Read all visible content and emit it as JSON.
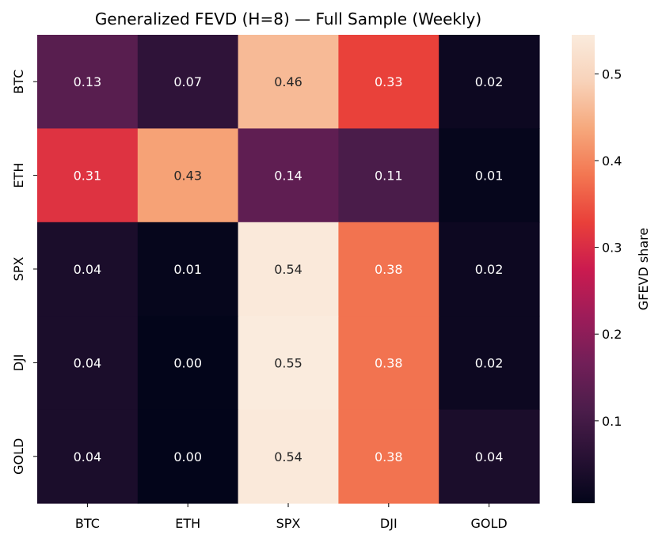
{
  "chart_data": {
    "type": "heatmap",
    "title": "Generalized FEVD (H=8) — Full Sample (Weekly)",
    "rows": [
      "BTC",
      "ETH",
      "SPX",
      "DJI",
      "GOLD"
    ],
    "columns": [
      "BTC",
      "ETH",
      "SPX",
      "DJI",
      "GOLD"
    ],
    "values": [
      [
        0.13,
        0.07,
        0.46,
        0.33,
        0.02
      ],
      [
        0.31,
        0.43,
        0.14,
        0.11,
        0.01
      ],
      [
        0.04,
        0.01,
        0.54,
        0.38,
        0.02
      ],
      [
        0.04,
        0.0,
        0.55,
        0.38,
        0.02
      ],
      [
        0.04,
        0.0,
        0.54,
        0.38,
        0.04
      ]
    ],
    "value_format": "0.00",
    "colormap": "rocket",
    "colorbar": {
      "label": "GFEVD share",
      "range": [
        0.005,
        0.545
      ],
      "ticks": [
        0.1,
        0.2,
        0.3,
        0.4,
        0.5
      ],
      "tick_labels": [
        "0.1",
        "0.2",
        "0.3",
        "0.4",
        "0.5"
      ]
    }
  }
}
